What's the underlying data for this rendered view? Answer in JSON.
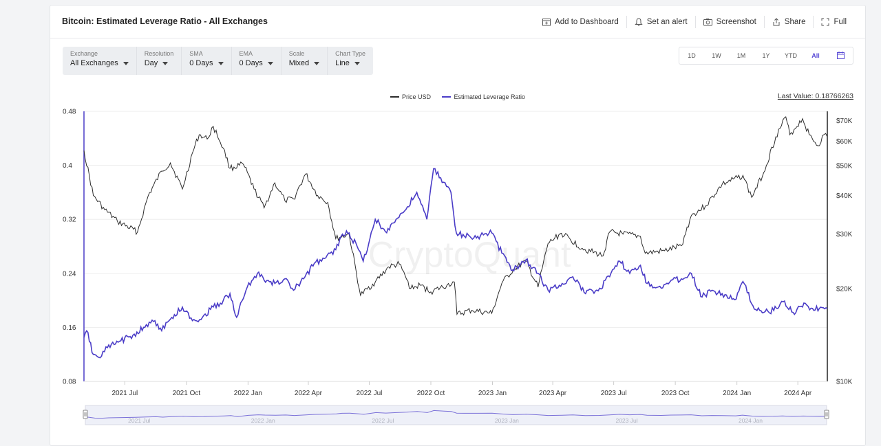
{
  "header": {
    "title": "Bitcoin: Estimated Leverage Ratio - All Exchanges",
    "actions": [
      {
        "label": "Add to Dashboard",
        "icon": "dashboard-add-icon"
      },
      {
        "label": "Set an alert",
        "icon": "bell-icon"
      },
      {
        "label": "Screenshot",
        "icon": "camera-icon"
      },
      {
        "label": "Share",
        "icon": "share-icon"
      },
      {
        "label": "Full",
        "icon": "fullscreen-icon"
      }
    ]
  },
  "filters": [
    {
      "label": "Exchange",
      "value": "All Exchanges"
    },
    {
      "label": "Resolution",
      "value": "Day"
    },
    {
      "label": "SMA",
      "value": "0 Days"
    },
    {
      "label": "EMA",
      "value": "0 Days"
    },
    {
      "label": "Scale",
      "value": "Mixed"
    },
    {
      "label": "Chart Type",
      "value": "Line"
    }
  ],
  "ranges": [
    "1D",
    "1W",
    "1M",
    "1Y",
    "YTD",
    "All"
  ],
  "active_range": "All",
  "last_value_text": "Last Value: 0.18766263",
  "watermark": "CryptoQuant",
  "colors": {
    "leverage": "#4a3cc7",
    "price": "#2b2b2b",
    "accent": "#5a4bd6"
  },
  "chart_data": {
    "type": "line",
    "x_tick_labels": [
      "2021 Jul",
      "2021 Oct",
      "2022 Jan",
      "2022 Apr",
      "2022 Jul",
      "2022 Oct",
      "2023 Jan",
      "2023 Apr",
      "2023 Jul",
      "2023 Oct",
      "2024 Jan",
      "2024 Apr"
    ],
    "x_range": [
      "2021-05-01",
      "2024-05-15"
    ],
    "left_axis": {
      "ticks": [
        "0.48",
        "0.4",
        "0.32",
        "0.24",
        "0.16",
        "0.08"
      ],
      "range": [
        0.08,
        0.48
      ]
    },
    "right_axis": {
      "scale": "log",
      "ticks": [
        "$70K",
        "$60K",
        "$50K",
        "$40K",
        "$30K",
        "$20K",
        "$10K"
      ],
      "range": [
        10000,
        75000
      ]
    },
    "series": [
      {
        "name": "Price USD",
        "axis": "right",
        "points": [
          [
            "2021-05-01",
            56000
          ],
          [
            "2021-05-15",
            40000
          ],
          [
            "2021-06-01",
            36000
          ],
          [
            "2021-06-20",
            33000
          ],
          [
            "2021-07-20",
            30500
          ],
          [
            "2021-08-05",
            40000
          ],
          [
            "2021-08-25",
            48000
          ],
          [
            "2021-09-07",
            51000
          ],
          [
            "2021-09-25",
            42000
          ],
          [
            "2021-10-10",
            55000
          ],
          [
            "2021-10-20",
            63000
          ],
          [
            "2021-11-01",
            61000
          ],
          [
            "2021-11-10",
            67000
          ],
          [
            "2021-11-25",
            57000
          ],
          [
            "2021-12-05",
            49000
          ],
          [
            "2021-12-25",
            50500
          ],
          [
            "2022-01-10",
            42000
          ],
          [
            "2022-01-25",
            36500
          ],
          [
            "2022-02-10",
            44000
          ],
          [
            "2022-02-25",
            38500
          ],
          [
            "2022-03-10",
            39000
          ],
          [
            "2022-03-28",
            47000
          ],
          [
            "2022-04-15",
            40000
          ],
          [
            "2022-04-30",
            38000
          ],
          [
            "2022-05-12",
            29000
          ],
          [
            "2022-06-01",
            30000
          ],
          [
            "2022-06-18",
            19000
          ],
          [
            "2022-07-10",
            21000
          ],
          [
            "2022-07-30",
            23500
          ],
          [
            "2022-08-15",
            24000
          ],
          [
            "2022-09-01",
            20000
          ],
          [
            "2022-09-15",
            20500
          ],
          [
            "2022-10-01",
            19500
          ],
          [
            "2022-10-25",
            20500
          ],
          [
            "2022-11-05",
            21000
          ],
          [
            "2022-11-09",
            16500
          ],
          [
            "2022-12-01",
            17000
          ],
          [
            "2022-12-31",
            16600
          ],
          [
            "2023-01-15",
            20800
          ],
          [
            "2023-02-01",
            23000
          ],
          [
            "2023-02-20",
            24500
          ],
          [
            "2023-03-10",
            20200
          ],
          [
            "2023-03-25",
            28000
          ],
          [
            "2023-04-14",
            30200
          ],
          [
            "2023-05-15",
            27000
          ],
          [
            "2023-06-15",
            25500
          ],
          [
            "2023-06-25",
            30500
          ],
          [
            "2023-07-15",
            30000
          ],
          [
            "2023-08-10",
            29500
          ],
          [
            "2023-08-17",
            26000
          ],
          [
            "2023-09-15",
            26500
          ],
          [
            "2023-10-10",
            27500
          ],
          [
            "2023-10-25",
            34500
          ],
          [
            "2023-11-15",
            37000
          ],
          [
            "2023-12-10",
            43500
          ],
          [
            "2024-01-10",
            46500
          ],
          [
            "2024-01-23",
            39500
          ],
          [
            "2024-02-10",
            47500
          ],
          [
            "2024-02-28",
            62000
          ],
          [
            "2024-03-14",
            72000
          ],
          [
            "2024-03-20",
            63000
          ],
          [
            "2024-04-08",
            71000
          ],
          [
            "2024-04-18",
            63000
          ],
          [
            "2024-05-01",
            58000
          ],
          [
            "2024-05-10",
            63000
          ],
          [
            "2024-05-15",
            62000
          ]
        ]
      },
      {
        "name": "Estimated Leverage Ratio",
        "axis": "left",
        "points": [
          [
            "2021-05-01",
            0.145
          ],
          [
            "2021-05-05",
            0.155
          ],
          [
            "2021-05-15",
            0.12
          ],
          [
            "2021-05-25",
            0.115
          ],
          [
            "2021-06-05",
            0.13
          ],
          [
            "2021-06-25",
            0.14
          ],
          [
            "2021-07-15",
            0.15
          ],
          [
            "2021-07-31",
            0.16
          ],
          [
            "2021-08-15",
            0.17
          ],
          [
            "2021-08-25",
            0.155
          ],
          [
            "2021-09-07",
            0.172
          ],
          [
            "2021-09-25",
            0.19
          ],
          [
            "2021-10-10",
            0.17
          ],
          [
            "2021-10-25",
            0.175
          ],
          [
            "2021-11-10",
            0.19
          ],
          [
            "2021-11-25",
            0.2
          ],
          [
            "2021-12-05",
            0.21
          ],
          [
            "2021-12-15",
            0.175
          ],
          [
            "2021-12-31",
            0.22
          ],
          [
            "2022-01-15",
            0.24
          ],
          [
            "2022-01-25",
            0.23
          ],
          [
            "2022-02-10",
            0.225
          ],
          [
            "2022-02-25",
            0.232
          ],
          [
            "2022-03-10",
            0.215
          ],
          [
            "2022-03-25",
            0.232
          ],
          [
            "2022-04-10",
            0.255
          ],
          [
            "2022-04-25",
            0.262
          ],
          [
            "2022-05-12",
            0.275
          ],
          [
            "2022-05-20",
            0.295
          ],
          [
            "2022-06-01",
            0.3
          ],
          [
            "2022-06-15",
            0.275
          ],
          [
            "2022-06-22",
            0.258
          ],
          [
            "2022-07-10",
            0.32
          ],
          [
            "2022-07-25",
            0.302
          ],
          [
            "2022-08-10",
            0.32
          ],
          [
            "2022-08-25",
            0.335
          ],
          [
            "2022-09-10",
            0.36
          ],
          [
            "2022-09-25",
            0.32
          ],
          [
            "2022-10-05",
            0.395
          ],
          [
            "2022-10-20",
            0.375
          ],
          [
            "2022-10-31",
            0.36
          ],
          [
            "2022-11-08",
            0.3
          ],
          [
            "2022-11-20",
            0.295
          ],
          [
            "2022-12-10",
            0.295
          ],
          [
            "2022-12-31",
            0.3
          ],
          [
            "2023-01-15",
            0.27
          ],
          [
            "2023-01-31",
            0.245
          ],
          [
            "2023-02-20",
            0.26
          ],
          [
            "2023-03-10",
            0.24
          ],
          [
            "2023-03-25",
            0.215
          ],
          [
            "2023-04-15",
            0.225
          ],
          [
            "2023-05-01",
            0.235
          ],
          [
            "2023-05-20",
            0.21
          ],
          [
            "2023-06-10",
            0.218
          ],
          [
            "2023-06-25",
            0.235
          ],
          [
            "2023-07-10",
            0.258
          ],
          [
            "2023-07-25",
            0.24
          ],
          [
            "2023-08-10",
            0.252
          ],
          [
            "2023-08-20",
            0.225
          ],
          [
            "2023-09-10",
            0.218
          ],
          [
            "2023-09-25",
            0.23
          ],
          [
            "2023-10-10",
            0.232
          ],
          [
            "2023-10-25",
            0.24
          ],
          [
            "2023-11-10",
            0.205
          ],
          [
            "2023-11-25",
            0.215
          ],
          [
            "2023-12-10",
            0.21
          ],
          [
            "2023-12-31",
            0.202
          ],
          [
            "2024-01-10",
            0.228
          ],
          [
            "2024-01-25",
            0.192
          ],
          [
            "2024-02-10",
            0.182
          ],
          [
            "2024-02-25",
            0.185
          ],
          [
            "2024-03-10",
            0.198
          ],
          [
            "2024-03-25",
            0.182
          ],
          [
            "2024-04-10",
            0.196
          ],
          [
            "2024-04-25",
            0.185
          ],
          [
            "2024-05-05",
            0.19
          ],
          [
            "2024-05-15",
            0.188
          ]
        ]
      }
    ],
    "navigator_tick_labels": [
      "2021 Jul",
      "2022 Jan",
      "2022 Jul",
      "2023 Jan",
      "2023 Jul",
      "2024 Jan"
    ]
  }
}
